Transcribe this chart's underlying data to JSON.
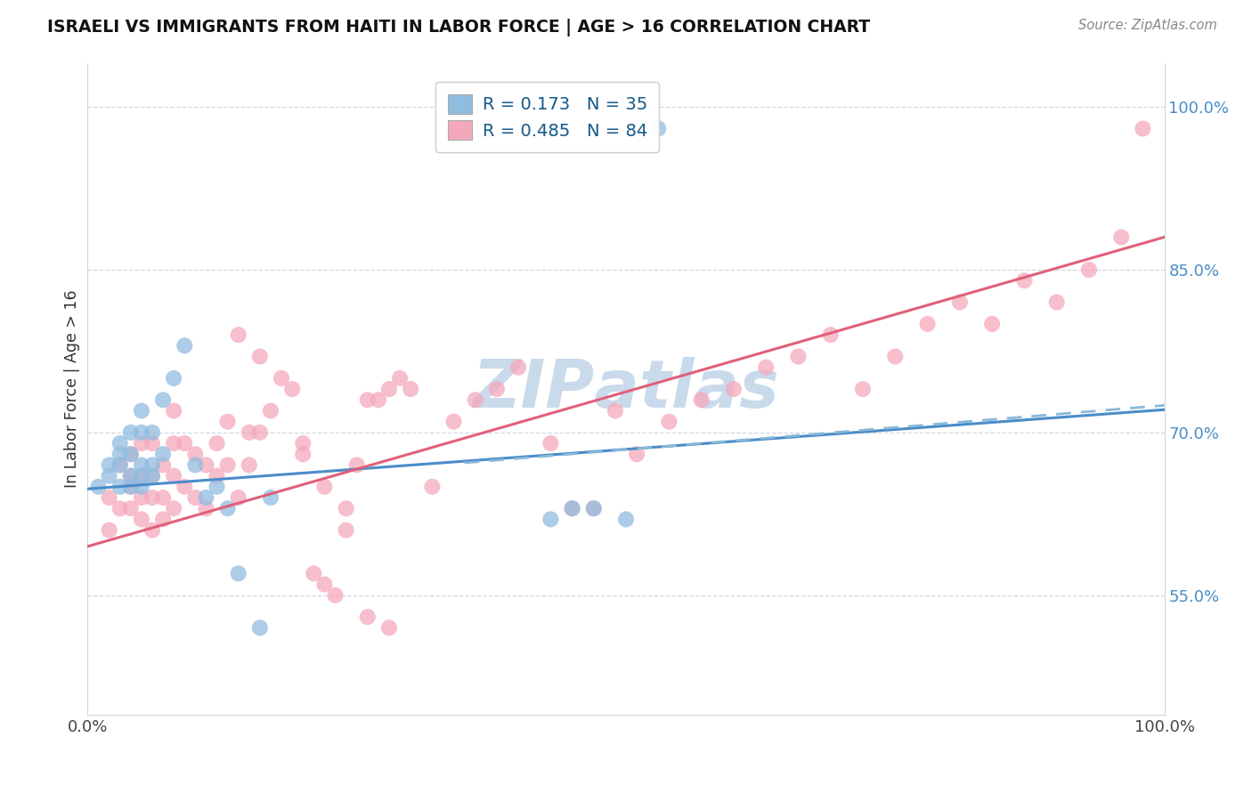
{
  "title": "ISRAELI VS IMMIGRANTS FROM HAITI IN LABOR FORCE | AGE > 16 CORRELATION CHART",
  "source": "Source: ZipAtlas.com",
  "ylabel": "In Labor Force | Age > 16",
  "israelis_color": "#90bce0",
  "haiti_color": "#f5a8bc",
  "israelis_line_color": "#4a8cc8",
  "haiti_line_color": "#e0607a",
  "israelis_R": 0.173,
  "israelis_N": 35,
  "haiti_R": 0.485,
  "haiti_N": 84,
  "ytick_vals": [
    0.55,
    0.7,
    0.85,
    1.0
  ],
  "ytick_labels": [
    "55.0%",
    "70.0%",
    "85.0%",
    "100.0%"
  ],
  "grid_color": "#d0d8e0",
  "xlim": [
    0.0,
    1.0
  ],
  "ylim": [
    0.44,
    1.04
  ],
  "isr_slope": 0.073,
  "isr_intercept": 0.648,
  "hat_slope": 0.285,
  "hat_intercept": 0.595,
  "isr_x": [
    0.01,
    0.02,
    0.02,
    0.03,
    0.03,
    0.03,
    0.03,
    0.04,
    0.04,
    0.04,
    0.04,
    0.05,
    0.05,
    0.05,
    0.05,
    0.05,
    0.06,
    0.06,
    0.06,
    0.07,
    0.07,
    0.08,
    0.09,
    0.1,
    0.11,
    0.12,
    0.13,
    0.14,
    0.16,
    0.17,
    0.43,
    0.45,
    0.47,
    0.5,
    0.53
  ],
  "isr_y": [
    0.65,
    0.67,
    0.66,
    0.69,
    0.67,
    0.65,
    0.68,
    0.66,
    0.65,
    0.68,
    0.7,
    0.67,
    0.65,
    0.66,
    0.7,
    0.72,
    0.66,
    0.67,
    0.7,
    0.68,
    0.73,
    0.75,
    0.78,
    0.67,
    0.64,
    0.65,
    0.63,
    0.57,
    0.52,
    0.64,
    0.62,
    0.63,
    0.63,
    0.62,
    0.98
  ],
  "hat_x": [
    0.02,
    0.02,
    0.03,
    0.03,
    0.04,
    0.04,
    0.04,
    0.04,
    0.05,
    0.05,
    0.05,
    0.05,
    0.06,
    0.06,
    0.06,
    0.06,
    0.07,
    0.07,
    0.07,
    0.08,
    0.08,
    0.08,
    0.08,
    0.09,
    0.09,
    0.1,
    0.1,
    0.11,
    0.11,
    0.12,
    0.12,
    0.13,
    0.13,
    0.14,
    0.15,
    0.15,
    0.16,
    0.17,
    0.19,
    0.2,
    0.21,
    0.22,
    0.23,
    0.24,
    0.25,
    0.26,
    0.27,
    0.28,
    0.29,
    0.3,
    0.32,
    0.34,
    0.36,
    0.38,
    0.4,
    0.43,
    0.45,
    0.47,
    0.49,
    0.51,
    0.54,
    0.57,
    0.6,
    0.63,
    0.66,
    0.69,
    0.72,
    0.75,
    0.78,
    0.81,
    0.84,
    0.87,
    0.9,
    0.93,
    0.96,
    0.98,
    0.14,
    0.16,
    0.18,
    0.2,
    0.22,
    0.24,
    0.26,
    0.28
  ],
  "hat_y": [
    0.64,
    0.61,
    0.67,
    0.63,
    0.65,
    0.66,
    0.63,
    0.68,
    0.62,
    0.64,
    0.66,
    0.69,
    0.61,
    0.64,
    0.66,
    0.69,
    0.62,
    0.64,
    0.67,
    0.63,
    0.66,
    0.69,
    0.72,
    0.65,
    0.69,
    0.64,
    0.68,
    0.63,
    0.67,
    0.66,
    0.69,
    0.67,
    0.71,
    0.64,
    0.7,
    0.67,
    0.7,
    0.72,
    0.74,
    0.69,
    0.57,
    0.56,
    0.55,
    0.63,
    0.67,
    0.73,
    0.73,
    0.74,
    0.75,
    0.74,
    0.65,
    0.71,
    0.73,
    0.74,
    0.76,
    0.69,
    0.63,
    0.63,
    0.72,
    0.68,
    0.71,
    0.73,
    0.74,
    0.76,
    0.77,
    0.79,
    0.74,
    0.77,
    0.8,
    0.82,
    0.8,
    0.84,
    0.82,
    0.85,
    0.88,
    0.98,
    0.79,
    0.77,
    0.75,
    0.68,
    0.65,
    0.61,
    0.53,
    0.52
  ]
}
